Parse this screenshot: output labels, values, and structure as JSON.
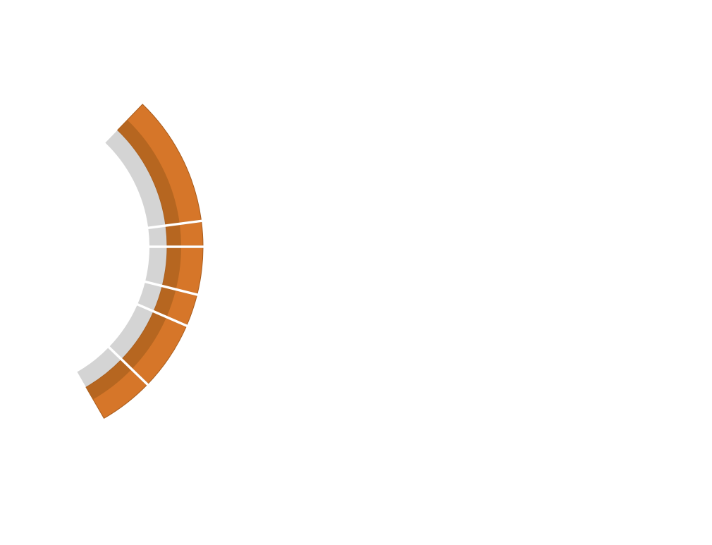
{
  "diagram": {
    "type": "arc-segments",
    "segment_count": 6,
    "colors": {
      "background": "#ffffff",
      "accent": "#d67629",
      "accent_dark": "#b0641f",
      "accent_stroke": "#a85d1e",
      "track": "#d4d4d4",
      "separator": "#ffffff"
    },
    "segments": [
      {
        "index": 1
      },
      {
        "index": 2
      },
      {
        "index": 3
      },
      {
        "index": 4
      },
      {
        "index": 5
      },
      {
        "index": 6
      }
    ]
  }
}
